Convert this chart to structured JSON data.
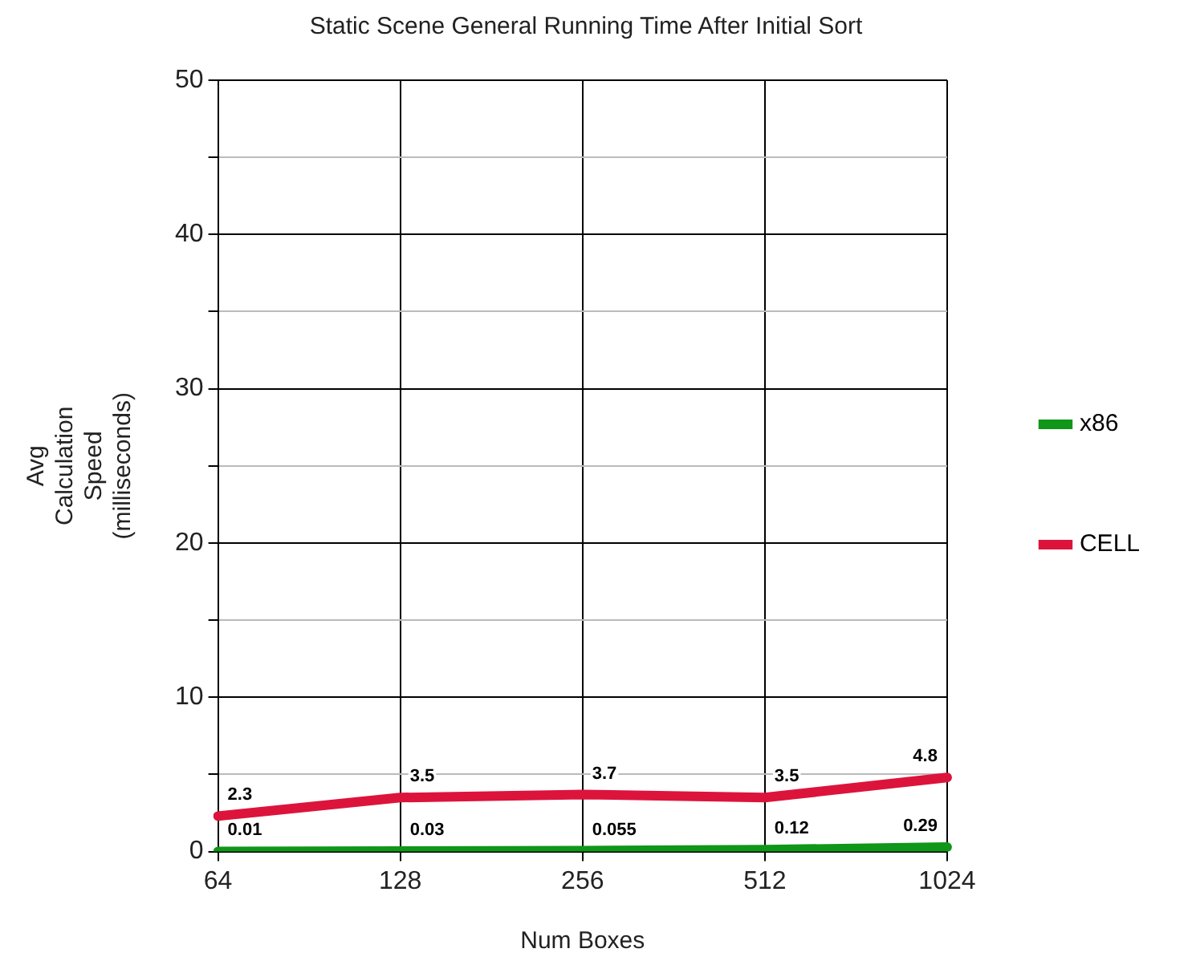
{
  "chart_data": {
    "type": "line",
    "title": "Static Scene General Running Time After Initial Sort",
    "xlabel": "Num Boxes",
    "ylabel": "Avg Calculation Speed (milliseconds)",
    "categories": [
      "64",
      "128",
      "256",
      "512",
      "1024"
    ],
    "series": [
      {
        "name": "x86",
        "color": "#109618",
        "values": [
          0.01,
          0.03,
          0.055,
          0.12,
          0.29
        ]
      },
      {
        "name": "CELL",
        "color": "#dc143c",
        "values": [
          2.3,
          3.5,
          3.7,
          3.5,
          4.8
        ]
      }
    ],
    "ylim": [
      0,
      50
    ],
    "yticks": [
      0,
      {
        "value": 5,
        "label": null
      },
      10,
      {
        "value": 15,
        "label": null
      },
      20,
      {
        "value": 25,
        "label": null
      },
      30,
      {
        "value": 35,
        "label": null
      },
      40,
      {
        "value": 45,
        "label": null
      },
      50
    ],
    "grid": true,
    "legend": "right",
    "marker": "none",
    "line_style": "solid",
    "data_labels": true
  }
}
